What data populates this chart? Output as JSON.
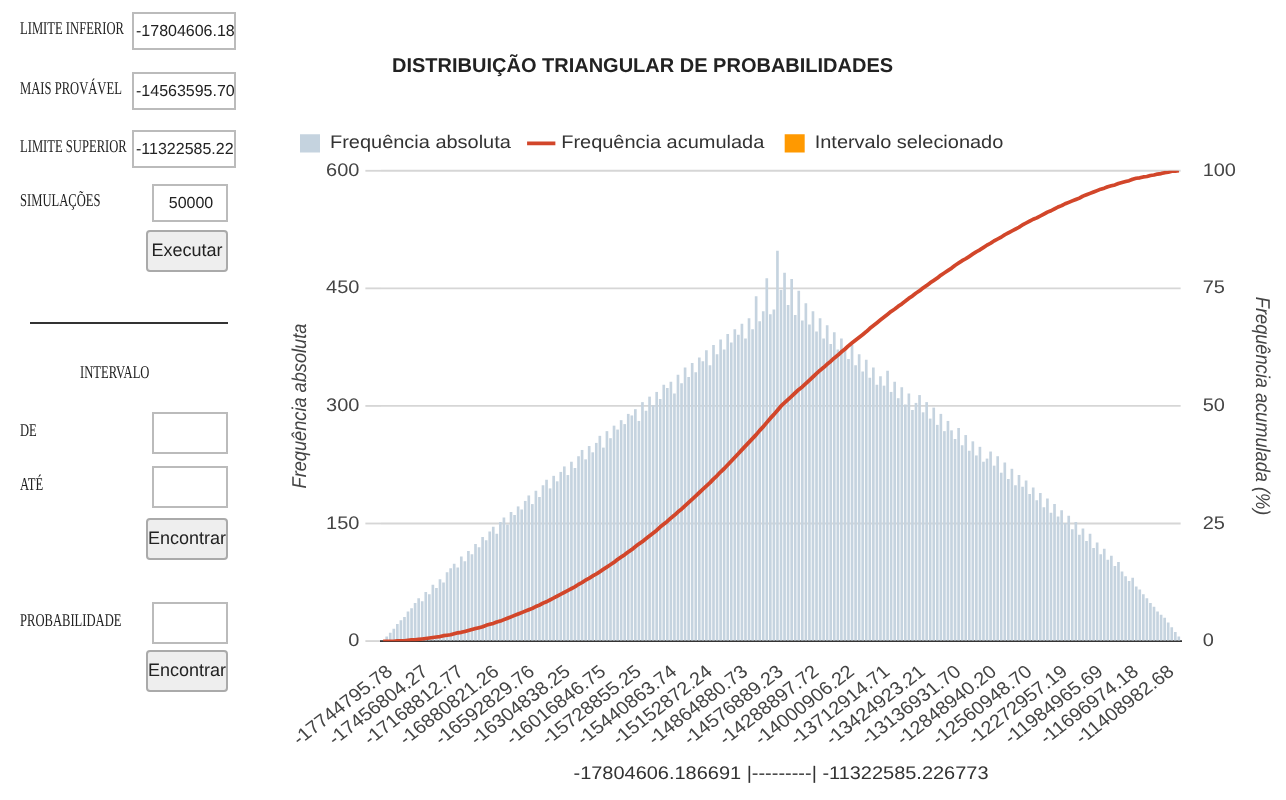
{
  "chart_data": [
    {
      "type": "other",
      "annotations": [
        "LIMITE INFERIOR",
        "-17804606.18",
        "MAIS PROVÁVEL",
        "-14563595.70",
        "LIMITE SUPERIOR",
        "-11322585.22",
        "SIMULAÇÕES",
        "50000",
        "Executar",
        "INTERVALO",
        "DE",
        "ATÉ",
        "Encontrar",
        "PROBABILIDADE",
        "Encontrar"
      ]
    },
    {
      "type": "bar",
      "title": "DISTRIBUIÇÃO TRIANGULAR DE PROBABILIDADES",
      "xlabel": "-17804606.186691 |---------| -11322585.226773",
      "ylabel": "Frequência absoluta",
      "y2label": "Frequência acumulada (%)",
      "legend": "top left",
      "grid": "y",
      "ylim": [
        0,
        600
      ],
      "yticks": [
        0,
        150,
        300,
        450,
        600
      ],
      "y2lim": [
        0,
        100
      ],
      "y2ticks": [
        0,
        25,
        50,
        75,
        100
      ],
      "categories": [
        null,
        null,
        "-17744795.78",
        null,
        null,
        null,
        null,
        null,
        null,
        null,
        null,
        null,
        "-17456804.27",
        null,
        null,
        null,
        null,
        null,
        null,
        null,
        null,
        null,
        "-17168812.77",
        null,
        null,
        null,
        null,
        null,
        null,
        null,
        null,
        null,
        "-16880821.26",
        null,
        null,
        null,
        null,
        null,
        null,
        null,
        null,
        null,
        "-16592829.76",
        null,
        null,
        null,
        null,
        null,
        null,
        null,
        null,
        null,
        "-16304838.25",
        null,
        null,
        null,
        null,
        null,
        null,
        null,
        null,
        null,
        "-16016846.75",
        null,
        null,
        null,
        null,
        null,
        null,
        null,
        null,
        null,
        "-15728855.25",
        null,
        null,
        null,
        null,
        null,
        null,
        null,
        null,
        null,
        "-15440863.74",
        null,
        null,
        null,
        null,
        null,
        null,
        null,
        null,
        null,
        "-15152872.24",
        null,
        null,
        null,
        null,
        null,
        null,
        null,
        null,
        null,
        "-14864880.73",
        null,
        null,
        null,
        null,
        null,
        null,
        null,
        null,
        null,
        "-14576889.23",
        null,
        null,
        null,
        null,
        null,
        null,
        null,
        null,
        null,
        "-14288897.72",
        null,
        null,
        null,
        null,
        null,
        null,
        null,
        null,
        null,
        "-14000906.22",
        null,
        null,
        null,
        null,
        null,
        null,
        null,
        null,
        null,
        "-13712914.71",
        null,
        null,
        null,
        null,
        null,
        null,
        null,
        null,
        null,
        "-13424923.21",
        null,
        null,
        null,
        null,
        null,
        null,
        null,
        null,
        null,
        "-13136931.70",
        null,
        null,
        null,
        null,
        null,
        null,
        null,
        null,
        null,
        "-12848940.20",
        null,
        null,
        null,
        null,
        null,
        null,
        null,
        null,
        null,
        "-12560948.70",
        null,
        null,
        null,
        null,
        null,
        null,
        null,
        null,
        null,
        "-12272957.19",
        null,
        null,
        null,
        null,
        null,
        null,
        null,
        null,
        null,
        "-11984965.69",
        null,
        null,
        null,
        null,
        null,
        null,
        null,
        null,
        null,
        "-11696974.18",
        null,
        null,
        null,
        null,
        null,
        null,
        null,
        null,
        null,
        "-11408982.68",
        null,
        null
      ],
      "series": [
        {
          "name": "Frequência absoluta",
          "type": "bar",
          "color": "#c5d3df",
          "values": [
            null,
            6,
            11,
            16,
            22,
            27,
            31,
            38,
            42,
            49,
            55,
            51,
            63,
            60,
            72,
            68,
            79,
            75,
            88,
            93,
            99,
            94,
            108,
            102,
            115,
            111,
            124,
            120,
            133,
            129,
            140,
            146,
            137,
            152,
            158,
            149,
            165,
            161,
            172,
            168,
            179,
            186,
            175,
            192,
            184,
            199,
            206,
            195,
            211,
            204,
            216,
            223,
            212,
            229,
            221,
            236,
            244,
            232,
            249,
            241,
            253,
            262,
            247,
            268,
            259,
            275,
            270,
            282,
            277,
            290,
            288,
            296,
            281,
            305,
            294,
            312,
            301,
            318,
            309,
            327,
            323,
            331,
            316,
            340,
            329,
            349,
            337,
            355,
            343,
            362,
            357,
            371,
            352,
            378,
            366,
            385,
            372,
            392,
            381,
            398,
            391,
            405,
            386,
            412,
            398,
            440,
            408,
            421,
            463,
            417,
            423,
            498,
            448,
            470,
            429,
            462,
            416,
            447,
            409,
            431,
            404,
            421,
            395,
            412,
            386,
            403,
            379,
            394,
            372,
            386,
            371,
            360,
            378,
            352,
            366,
            344,
            359,
            336,
            349,
            327,
            338,
            326,
            345,
            318,
            331,
            310,
            324,
            302,
            316,
            295,
            304,
            314,
            292,
            305,
            284,
            298,
            276,
            290,
            268,
            281,
            269,
            258,
            272,
            250,
            263,
            243,
            255,
            237,
            248,
            229,
            233,
            242,
            224,
            236,
            215,
            228,
            207,
            220,
            199,
            212,
            197,
            205,
            188,
            196,
            180,
            189,
            171,
            182,
            164,
            175,
            159,
            167,
            151,
            160,
            143,
            152,
            136,
            144,
            128,
            137,
            119,
            126,
            111,
            118,
            104,
            109,
            96,
            101,
            89,
            83,
            77,
            81,
            70,
            66,
            60,
            55,
            49,
            44,
            38,
            34,
            30,
            24,
            18,
            12,
            6
          ]
        },
        {
          "name": "Frequência acumulada",
          "type": "line",
          "axis": "y2",
          "marker": "none",
          "color": "#d2462a",
          "values": [
            0,
            0,
            0,
            0,
            0.1,
            0.1,
            0.1,
            0.2,
            0.3,
            0.3,
            0.4,
            0.5,
            0.6,
            0.7,
            0.8,
            0.9,
            1.0,
            1.2,
            1.3,
            1.4,
            1.6,
            1.8,
            1.9,
            2.1,
            2.3,
            2.5,
            2.7,
            2.9,
            3.1,
            3.4,
            3.6,
            3.8,
            4.1,
            4.3,
            4.6,
            4.9,
            5.2,
            5.5,
            5.8,
            6.1,
            6.4,
            6.7,
            7.0,
            7.4,
            7.7,
            8.1,
            8.4,
            8.8,
            9.2,
            9.6,
            10.0,
            10.4,
            10.8,
            11.2,
            11.6,
            12.1,
            12.5,
            13.0,
            13.4,
            13.9,
            14.3,
            14.8,
            15.3,
            15.8,
            16.3,
            16.8,
            17.4,
            17.9,
            18.4,
            19.0,
            19.5,
            20.1,
            20.7,
            21.2,
            21.8,
            22.4,
            23.0,
            23.6,
            24.3,
            24.9,
            25.5,
            26.2,
            26.8,
            27.5,
            28.1,
            28.8,
            29.5,
            30.2,
            30.9,
            31.6,
            32.3,
            33.0,
            33.7,
            34.5,
            35.2,
            36.0,
            36.7,
            37.5,
            38.3,
            39.1,
            39.9,
            40.7,
            41.5,
            42.3,
            43.1,
            43.9,
            44.8,
            45.6,
            46.5,
            47.4,
            48.2,
            49.1,
            50.0,
            50.7,
            51.4,
            52.1,
            52.8,
            53.5,
            54.1,
            54.8,
            55.5,
            56.2,
            56.9,
            57.6,
            58.2,
            58.9,
            59.5,
            60.2,
            60.8,
            61.5,
            62.1,
            62.8,
            63.4,
            64.0,
            64.6,
            65.2,
            65.8,
            66.5,
            67.1,
            67.7,
            68.3,
            68.9,
            69.5,
            70.1,
            70.6,
            71.2,
            71.7,
            72.3,
            72.9,
            73.4,
            74.0,
            74.5,
            75.1,
            75.6,
            76.2,
            76.7,
            77.2,
            77.8,
            78.3,
            78.8,
            79.3,
            79.9,
            80.4,
            80.9,
            81.3,
            81.8,
            82.3,
            82.8,
            83.2,
            83.7,
            84.2,
            84.6,
            85.1,
            85.5,
            85.9,
            86.4,
            86.8,
            87.2,
            87.6,
            88.0,
            88.5,
            88.9,
            89.3,
            89.7,
            90.0,
            90.4,
            90.8,
            91.2,
            91.5,
            91.9,
            92.3,
            92.6,
            93.0,
            93.3,
            93.6,
            93.9,
            94.2,
            94.6,
            94.9,
            95.2,
            95.5,
            95.8,
            96.1,
            96.3,
            96.6,
            96.8,
            97.0,
            97.3,
            97.5,
            97.7,
            97.9,
            98.2,
            98.4,
            98.5,
            98.7,
            98.8,
            99.0,
            99.1,
            99.3,
            99.4,
            99.6,
            99.7,
            99.9,
            99.9,
            100
          ]
        },
        {
          "name": "Intervalo selecionado",
          "type": "bar",
          "color": "#ff9900",
          "values": [
            null,
            null,
            null,
            null,
            null,
            null,
            null,
            null,
            null,
            null,
            null,
            null,
            null,
            null,
            null,
            null,
            null,
            null,
            null,
            null,
            null,
            null,
            null,
            null,
            null,
            null,
            null,
            null,
            null,
            null,
            null,
            null,
            null,
            null,
            null,
            null,
            null,
            null,
            null,
            null,
            null,
            null,
            null,
            null,
            null,
            null,
            null,
            null,
            null,
            null,
            null,
            null,
            null,
            null,
            null,
            null,
            null,
            null,
            null,
            null,
            null,
            null,
            null,
            null,
            null,
            null,
            null,
            null,
            null,
            null,
            null,
            null,
            null,
            null,
            null,
            null,
            null,
            null,
            null,
            null,
            null,
            null,
            null,
            null,
            null,
            null,
            null,
            null,
            null,
            null,
            null,
            null,
            null,
            null,
            null,
            null,
            null,
            null,
            null,
            null,
            null,
            null,
            null,
            null,
            null,
            null,
            null,
            null,
            null,
            null,
            null,
            null,
            null,
            null,
            null,
            null,
            null,
            null,
            null,
            null,
            null,
            null,
            null,
            null,
            null,
            null,
            null,
            null,
            null,
            null,
            null,
            null,
            null,
            null,
            null,
            null,
            null,
            null,
            null,
            null,
            null,
            null,
            null,
            null,
            null,
            null,
            null,
            null,
            null,
            null,
            null,
            null,
            null,
            null,
            null,
            null,
            null,
            null,
            null,
            null,
            null,
            null,
            null,
            null,
            null,
            null,
            null,
            null,
            null,
            null,
            null,
            null,
            null,
            null,
            null,
            null,
            null,
            null,
            null,
            null,
            null,
            null,
            null,
            null,
            null,
            null,
            null,
            null,
            null,
            null,
            null,
            null,
            null,
            null,
            null,
            null,
            null,
            null,
            null,
            null,
            null,
            null,
            null,
            null,
            null,
            null,
            null,
            null,
            null,
            null,
            null,
            null,
            null,
            null,
            null,
            null,
            null,
            null,
            null,
            null,
            null,
            null,
            null,
            null,
            null
          ]
        }
      ]
    }
  ]
}
